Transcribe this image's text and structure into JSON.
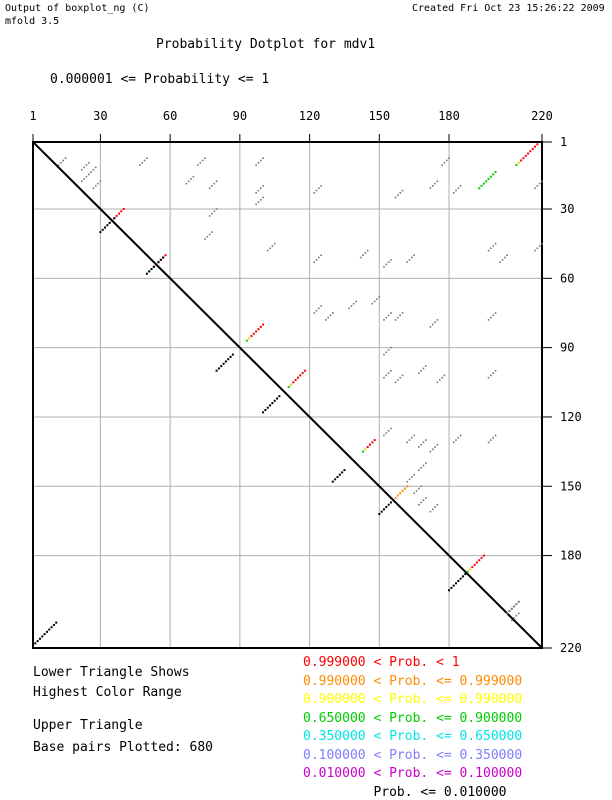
{
  "header": {
    "left_line1": "Output of boxplot_ng (C)",
    "left_line2": "mfold 3.5",
    "right_line1": "Created Fri Oct 23 15:26:22 2009"
  },
  "chart_data": {
    "type": "scatter",
    "title": "Probability Dotplot for mdv1",
    "subtitle": "0.000001 <= Probability <= 1",
    "x_ticks": [
      1,
      30,
      60,
      90,
      120,
      150,
      180,
      220
    ],
    "y_ticks": [
      1,
      30,
      60,
      90,
      120,
      150,
      180,
      220
    ],
    "xlim": [
      1,
      220
    ],
    "ylim": [
      1,
      220
    ],
    "grid": true,
    "diagonal": true,
    "helices": [
      {
        "i": 2,
        "j": 218,
        "len": 10,
        "upper": "red",
        "lower": "#000000"
      },
      {
        "i": 14,
        "j": 200,
        "len": 8,
        "upper": "green",
        "lower": "none"
      },
      {
        "i": 40,
        "j": 30,
        "len": 7,
        "upper": "red",
        "lower": "#000000"
      },
      {
        "i": 50,
        "j": 58,
        "len": 8,
        "upper": "red",
        "lower": "#000000"
      },
      {
        "i": 80,
        "j": 100,
        "len": 8,
        "upper": "red",
        "lower": "#000000"
      },
      {
        "i": 100,
        "j": 118,
        "len": 8,
        "upper": "red",
        "lower": "#000000"
      },
      {
        "i": 130,
        "j": 148,
        "len": 6,
        "upper": "red",
        "lower": "#000000"
      },
      {
        "i": 150,
        "j": 162,
        "len": 6,
        "upper": "orange",
        "lower": "#000000"
      },
      {
        "i": 180,
        "j": 195,
        "len": 8,
        "upper": "red",
        "lower": "#000000"
      },
      {
        "i": 200,
        "j": 210,
        "len": 6,
        "upper": "grey",
        "lower": "none"
      }
    ],
    "legend": {
      "lower_label": "Lower Triangle Shows",
      "lower_label2": "Highest Color Range",
      "upper_label": "Upper Triangle",
      "base_pairs": "Base pairs Plotted: 680",
      "ranges": [
        {
          "text": "0.999000 < Prob. < 1",
          "color": "#ff0000"
        },
        {
          "text": "0.990000 < Prob. <= 0.999000",
          "color": "#ff8c00"
        },
        {
          "text": "0.900000 < Prob. <= 0.990000",
          "color": "#ffff00"
        },
        {
          "text": "0.650000 < Prob. <= 0.900000",
          "color": "#00cc00"
        },
        {
          "text": "0.350000 < Prob. <= 0.650000",
          "color": "#00e5e5"
        },
        {
          "text": "0.100000 < Prob. <= 0.350000",
          "color": "#7f7fff"
        },
        {
          "text": "0.010000 < Prob. <= 0.100000",
          "color": "#cc00cc"
        },
        {
          "text": "         Prob. <= 0.010000",
          "color": "#000000"
        }
      ]
    }
  }
}
